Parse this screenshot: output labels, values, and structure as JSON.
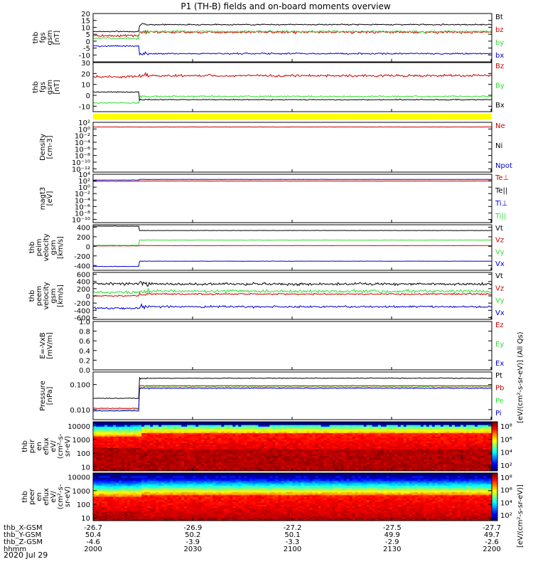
{
  "title": "P1 (TH-B) fields and on-board moments overview",
  "date": "2020 Jul 29",
  "colors": {
    "black": "#000000",
    "red": "#cc0000",
    "green": "#33dd33",
    "blue": "#0000cc",
    "yellow": "#ffff00"
  },
  "chart_data": [
    {
      "type": "line",
      "id": "fgs",
      "ylabel": [
        "thb",
        "fgs",
        "gsm",
        "[nT]"
      ],
      "ylim": [
        -15,
        20
      ],
      "ticks": [
        20,
        15,
        10,
        5,
        0,
        -5,
        -10
      ],
      "tick_labels": [
        "20",
        "15",
        "10",
        "5",
        "0",
        "-5",
        "-10"
      ],
      "legend": [
        {
          "name": "Bt",
          "color": "black"
        },
        {
          "name": "bz",
          "color": "red"
        },
        {
          "name": "by",
          "color": "green"
        },
        {
          "name": "bx",
          "color": "blue"
        }
      ],
      "series": [
        {
          "name": "Bt",
          "color": "black",
          "before": 7,
          "after": 12,
          "noise": 0.6
        },
        {
          "name": "bz",
          "color": "red",
          "before": 4,
          "after": 6.5,
          "noise": 1.2
        },
        {
          "name": "by",
          "color": "green",
          "before": 2,
          "after": 7,
          "noise": 1
        },
        {
          "name": "bx",
          "color": "blue",
          "before": -3.5,
          "after": -9,
          "noise": 0.8
        }
      ]
    },
    {
      "type": "line",
      "id": "fgs2",
      "ylabel": [
        "thb",
        "fgs",
        "gsm",
        "[nT]"
      ],
      "ylim": [
        -15,
        30
      ],
      "ticks": [
        30,
        20,
        10,
        0,
        -10
      ],
      "tick_labels": [
        "30",
        "20",
        "10",
        "0",
        "-10"
      ],
      "legend": [
        {
          "name": "Bz",
          "color": "red"
        },
        {
          "name": "By",
          "color": "green"
        },
        {
          "name": "Bx",
          "color": "black"
        }
      ],
      "series": [
        {
          "name": "Bz",
          "color": "red",
          "before": 17,
          "after": 18,
          "noise": 1.5
        },
        {
          "name": "By",
          "color": "green",
          "before": -7,
          "after": -1,
          "noise": 1
        },
        {
          "name": "Bx",
          "color": "black",
          "before": 3,
          "after": -4,
          "noise": 0.6
        }
      ]
    },
    {
      "type": "bar",
      "id": "flag",
      "note": "yellow flag bar"
    },
    {
      "type": "line",
      "id": "density",
      "ylabel": [
        "Density",
        "[cm-3]"
      ],
      "log": true,
      "ylim": [
        -13,
        2
      ],
      "ticks": [
        2,
        0,
        -2,
        -4,
        -6,
        -8,
        -10,
        -12
      ],
      "tick_labels": [
        "10²",
        "10⁰",
        "10⁻²",
        "10⁻⁴",
        "10⁻⁶",
        "10⁻⁸",
        "10⁻¹⁰",
        "10⁻¹²"
      ],
      "legend": [
        {
          "name": "Ne",
          "color": "red"
        },
        {
          "name": "Ni",
          "color": "black"
        },
        {
          "name": "Npot",
          "color": "blue"
        }
      ],
      "series": [
        {
          "name": "Ne",
          "color": "red",
          "before": 0.6,
          "after": 0.6,
          "noise": 0.05
        }
      ]
    },
    {
      "type": "line",
      "id": "magt3",
      "ylabel": [
        "magt3",
        "[eV]"
      ],
      "log": true,
      "ylim": [
        -11,
        4
      ],
      "ticks": [
        4,
        2,
        0,
        -2,
        -4,
        -6,
        -8,
        -10
      ],
      "tick_labels": [
        "10⁴",
        "10²",
        "10⁰",
        "10⁻²",
        "10⁻⁴",
        "10⁻⁶",
        "10⁻⁸",
        "10⁻¹⁰"
      ],
      "legend": [
        {
          "name": "Te⊥",
          "color": "red"
        },
        {
          "name": "Te||",
          "color": "black"
        },
        {
          "name": "Ti⊥",
          "color": "blue"
        },
        {
          "name": "Ti||",
          "color": "green"
        }
      ],
      "series": [
        {
          "name": "Ti",
          "color": "blue",
          "before": 2.2,
          "after": 2.4,
          "noise": 0.05
        },
        {
          "name": "Te",
          "color": "red",
          "before": 1.8,
          "after": 1.9,
          "noise": 0.05
        }
      ]
    },
    {
      "type": "line",
      "id": "peim",
      "ylabel": [
        "thb",
        "peim",
        "velocity",
        "gsm",
        "[km/s]"
      ],
      "ylim": [
        -500,
        450
      ],
      "ticks": [
        400,
        200,
        0,
        -200,
        -400
      ],
      "tick_labels": [
        "400",
        "200",
        "0",
        "-200",
        "-400"
      ],
      "legend": [
        {
          "name": "Vt",
          "color": "black"
        },
        {
          "name": "Vz",
          "color": "red"
        },
        {
          "name": "Vy",
          "color": "green"
        },
        {
          "name": "Vx",
          "color": "blue"
        }
      ],
      "series": [
        {
          "name": "Vt",
          "color": "black",
          "before": 420,
          "after": 330,
          "noise": 5
        },
        {
          "name": "Vz",
          "color": "red",
          "before": 10,
          "after": 15,
          "noise": 3
        },
        {
          "name": "Vy",
          "color": "green",
          "before": 20,
          "after": 130,
          "noise": 5
        },
        {
          "name": "Vx",
          "color": "blue",
          "before": -420,
          "after": -310,
          "noise": 5
        }
      ]
    },
    {
      "type": "line",
      "id": "peem",
      "ylabel": [
        "thb",
        "peem",
        "velocity",
        "gsm",
        "[km/s]"
      ],
      "ylim": [
        -650,
        650
      ],
      "ticks": [
        600,
        400,
        200,
        0,
        -200,
        -400,
        -600
      ],
      "tick_labels": [
        "600",
        "400",
        "200",
        "0",
        "-200",
        "-400",
        "-600"
      ],
      "legend": [
        {
          "name": "Vt",
          "color": "black"
        },
        {
          "name": "Vz",
          "color": "red"
        },
        {
          "name": "Vy",
          "color": "green"
        },
        {
          "name": "Vx",
          "color": "blue"
        }
      ],
      "series": [
        {
          "name": "Vt",
          "color": "black",
          "before": 340,
          "after": 330,
          "noise": 50
        },
        {
          "name": "Vz",
          "color": "red",
          "before": 0,
          "after": 50,
          "noise": 30
        },
        {
          "name": "Vy",
          "color": "green",
          "before": 100,
          "after": 130,
          "noise": 60
        },
        {
          "name": "Vx",
          "color": "blue",
          "before": -340,
          "after": -300,
          "noise": 40
        }
      ]
    },
    {
      "type": "line",
      "id": "efield",
      "ylabel": [
        "E=-VxB",
        "[mV/m]"
      ],
      "ylim": [
        0,
        1
      ],
      "ticks": [
        1,
        0.8,
        0.6,
        0.4,
        0.2,
        0
      ],
      "tick_labels": [
        "1.0",
        "0.8",
        "0.6",
        "0.4",
        "0.2",
        "0.0"
      ],
      "legend": [
        {
          "name": "Ez",
          "color": "red"
        },
        {
          "name": "Ey",
          "color": "green"
        },
        {
          "name": "Ex",
          "color": "blue"
        }
      ],
      "series": []
    },
    {
      "type": "line",
      "id": "pressure",
      "ylabel": [
        "Pressure",
        "[nPa]"
      ],
      "log": true,
      "ylim": [
        -2.4,
        -0.5
      ],
      "ticks": [
        -1,
        -2
      ],
      "tick_labels": [
        "0.100",
        "0.010"
      ],
      "legend": [
        {
          "name": "Pt",
          "color": "black"
        },
        {
          "name": "Pb",
          "color": "red"
        },
        {
          "name": "Pe",
          "color": "green"
        },
        {
          "name": "Pi",
          "color": "blue"
        }
      ],
      "series": [
        {
          "name": "Pt",
          "color": "black",
          "before": -1.55,
          "after": -0.75,
          "noise": 0.02
        },
        {
          "name": "Pb",
          "color": "red",
          "before": -1.95,
          "after": -1.05,
          "noise": 0.02
        },
        {
          "name": "Pe",
          "color": "green",
          "before": -2.0,
          "after": -1.1,
          "noise": 0.03
        },
        {
          "name": "Pi",
          "color": "blue",
          "before": -2.05,
          "after": -1.15,
          "noise": 0.02
        }
      ]
    },
    {
      "type": "heatmap",
      "id": "peir",
      "ylabel": [
        "thb",
        "peir",
        "en",
        "eflux",
        "eV/",
        "(cm²-s-",
        "sr-eV)"
      ],
      "ylim": [
        0.7,
        4.3
      ],
      "ticks": [
        4,
        3,
        2,
        1
      ],
      "tick_labels": [
        "10000",
        "1000",
        "100",
        "10"
      ],
      "bands": {
        "before": [
          2.4,
          3.2
        ],
        "after": [
          2.3,
          3.4
        ]
      },
      "colorbar": {
        "tick_labels": [
          "10⁸",
          "10⁶",
          "10⁴",
          "10²"
        ],
        "label": "[eV/(cm²-s-sr-eV)] (All Qs)"
      }
    },
    {
      "type": "heatmap",
      "id": "peer",
      "ylabel": [
        "thb",
        "peer",
        "en",
        "eflux",
        "eV/",
        "(cm²-s-",
        "sr-eV)"
      ],
      "ylim": [
        0.8,
        4.3
      ],
      "ticks": [
        4,
        3,
        2,
        1
      ],
      "tick_labels": [
        "10000",
        "1000",
        "100",
        "10"
      ],
      "bands": {
        "before": [
          1.5,
          2.6
        ],
        "after": [
          1.0,
          2.7
        ]
      },
      "colorbar": {
        "tick_labels": [
          "10⁸",
          "10⁶",
          "10⁴",
          "10²"
        ],
        "label": "[eV/(cm²-s-sr-eV)]"
      }
    }
  ],
  "xaxis": {
    "tick_rows": [
      {
        "label": "thb_X-GSM",
        "values": [
          "-26.7",
          "-26.9",
          "-27.2",
          "-27.5",
          "-27.7"
        ]
      },
      {
        "label": "thb_Y-GSM",
        "values": [
          "50.4",
          "50.2",
          "50.1",
          "49.9",
          "49.7"
        ]
      },
      {
        "label": "thb_Z-GSM",
        "values": [
          "-4.6",
          "-3.9",
          "-3.3",
          "-2.9",
          "-2.6"
        ]
      },
      {
        "label": "hhmm",
        "values": [
          "2000",
          "2030",
          "2100",
          "2130",
          "2200"
        ]
      }
    ]
  }
}
